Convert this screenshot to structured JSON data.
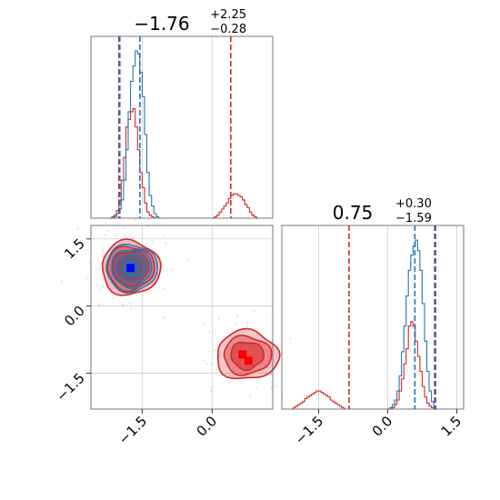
{
  "chart_data": {
    "type": "corner",
    "colors": {
      "blue": "#1f77b4",
      "red": "#d62728",
      "marker_blue": "#0000ff",
      "marker_red": "#ff0000"
    },
    "panels": [
      {
        "id": "hist-p1",
        "type": "histogram",
        "title": {
          "main": "−1.76",
          "sup": "+2.25",
          "sub": "−0.28"
        },
        "xlim": [
          -2.6,
          1.3
        ],
        "blue_bins": {
          "start": -2.2,
          "width": 0.05,
          "counts": [
            0,
            0,
            1,
            3,
            6,
            12,
            25,
            45,
            70,
            90,
            100,
            110,
            108,
            96,
            80,
            55,
            30,
            15,
            8,
            3,
            1,
            0
          ]
        },
        "red_bins": {
          "start": -2.2,
          "width": 0.05,
          "counts": [
            0,
            1,
            2,
            5,
            12,
            25,
            40,
            60,
            65,
            70,
            72,
            60,
            45,
            30,
            20,
            10,
            4,
            2,
            1,
            0
          ]
        },
        "red_bins_right": {
          "start": 0.0,
          "width": 0.05,
          "counts": [
            0,
            1,
            2,
            4,
            6,
            8,
            10,
            13,
            15,
            16,
            16,
            15,
            14,
            12,
            9,
            7,
            4,
            2,
            1,
            0
          ]
        },
        "red_lines": [
          -2.0,
          0.4
        ],
        "blue_lines": [
          -1.98,
          -1.55
        ]
      },
      {
        "id": "hist-p2",
        "type": "histogram",
        "title": {
          "main": "0.75",
          "sup": "+0.30",
          "sub": "−1.59"
        },
        "xlim": [
          -2.3,
          1.65
        ],
        "blue_bins": {
          "start": 0.0,
          "width": 0.05,
          "counts": [
            0,
            1,
            3,
            6,
            12,
            22,
            38,
            55,
            75,
            92,
            102,
            108,
            112,
            105,
            92,
            70,
            45,
            25,
            12,
            5,
            2,
            0
          ]
        },
        "red_bins": {
          "start": 0.05,
          "width": 0.05,
          "counts": [
            0,
            1,
            3,
            6,
            12,
            20,
            30,
            40,
            55,
            58,
            55,
            45,
            35,
            25,
            15,
            8,
            4,
            2,
            1,
            0
          ]
        },
        "red_bins_left": {
          "start": -2.1,
          "width": 0.05,
          "counts": [
            0,
            1,
            2,
            3,
            4,
            5,
            7,
            8,
            9,
            10,
            11,
            12,
            12,
            11,
            10,
            9,
            8,
            6,
            5,
            4,
            3,
            2,
            1,
            0
          ]
        },
        "red_lines": [
          -0.84,
          1.04
        ],
        "blue_lines": [
          0.59,
          1.02
        ]
      },
      {
        "id": "joint",
        "type": "scatter",
        "xlim": [
          -2.6,
          1.3
        ],
        "ylim": [
          -2.3,
          1.8
        ],
        "xticks": [
          -1.5,
          0.0
        ],
        "yticks": [
          1.5,
          0.0,
          -1.5
        ],
        "blue_blob": {
          "cx": -1.75,
          "cy": 0.85
        },
        "red_blob_upper": {
          "cx": -1.75,
          "cy": 0.85
        },
        "red_blob_lower": {
          "cx": 0.75,
          "cy": -1.1
        },
        "markers": [
          {
            "x": -1.75,
            "y": 0.85,
            "color": "#0000ff"
          },
          {
            "x": 0.65,
            "y": -1.08,
            "color": "#ff0000"
          },
          {
            "x": 0.78,
            "y": -1.22,
            "color": "#ff0000"
          }
        ]
      }
    ],
    "bottom_xticks_left": [
      "−1.5",
      "0.0"
    ],
    "bottom_xticks_right": [
      "−1.5",
      "0.0",
      "1.5"
    ],
    "left_yticks": [
      "1.5",
      "0.0",
      "−1.5"
    ]
  }
}
